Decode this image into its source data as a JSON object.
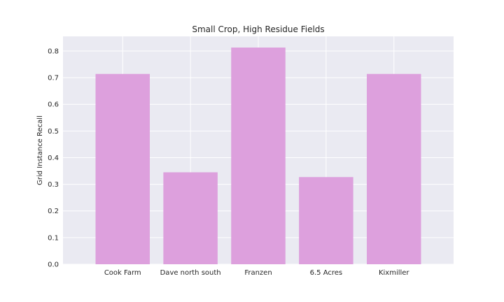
{
  "chart_data": {
    "type": "bar",
    "title": "Small Crop, High Residue Fields",
    "xlabel": "",
    "ylabel": "Grid Instance Recall",
    "categories": [
      "Cook Farm",
      "Dave north south",
      "Franzen",
      "6.5 Acres",
      "Kixmiller"
    ],
    "values": [
      0.714,
      0.345,
      0.813,
      0.327,
      0.714
    ],
    "ylim": [
      0,
      0.855
    ],
    "yticks": [
      0.0,
      0.1,
      0.2,
      0.3,
      0.4,
      0.5,
      0.6,
      0.7,
      0.8
    ],
    "ytick_labels": [
      "0.0",
      "0.1",
      "0.2",
      "0.3",
      "0.4",
      "0.5",
      "0.6",
      "0.7",
      "0.8"
    ],
    "grid": true,
    "colors": {
      "bar": "#dda0dd",
      "plot_background": "#eaeaf2",
      "grid": "#ffffff",
      "text": "#262626"
    }
  }
}
